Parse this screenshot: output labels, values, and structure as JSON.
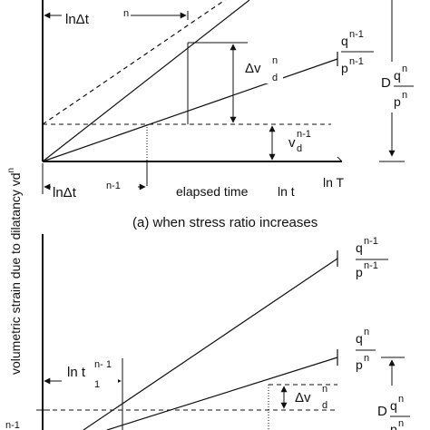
{
  "diagram": {
    "top_panel": {
      "label_ln_dt_n": "lnΔt",
      "label_ln_dt_n_sup": "n",
      "label_ln_dt_n1": "lnΔt",
      "label_ln_dt_n1_sup": "n-1",
      "label_dv_main": "Δv",
      "label_dv_sup": "n",
      "label_dv_sub": "d",
      "label_vd_main": "v",
      "label_vd_sub": "d",
      "label_vd_sup": "n-1",
      "label_elapsed": "elapsed time",
      "label_ln_t": "ln t",
      "label_ln_T": "ln T",
      "ratio_q": "q",
      "ratio_q_sup": "n-1",
      "ratio_p": "p",
      "ratio_p_sup": "n-1",
      "ratio_D": "D",
      "ratio_Dq": "q",
      "ratio_Dq_sup": "n",
      "ratio_Dp": "p",
      "ratio_Dp_sup": "n",
      "caption": "(a) when stress ratio increases"
    },
    "y_axis_label": "volumetric strain due to dilatancy vd",
    "y_axis_label_sup": "n",
    "bottom_panel": {
      "ratio1_q": "q",
      "ratio1_q_sup": "n-1",
      "ratio1_p": "p",
      "ratio1_p_sup": "n-1",
      "ratio2_q": "q",
      "ratio2_q_sup": "n",
      "ratio2_p": "p",
      "ratio2_p_sup": "n",
      "label_ln_t1_main": "ln t",
      "label_ln_t1_sup": "n- 1",
      "label_ln_t1_sub": "1",
      "label_dv_main": "Δv",
      "label_dv_sup": "n",
      "label_dv_sub": "d",
      "ratio_D": "D",
      "ratio_Dq": "q",
      "ratio_Dq_sup": "n",
      "ratio_Dp": "p",
      "ratio_Dp_sup": "n",
      "label_v_sup": "n-1"
    }
  }
}
